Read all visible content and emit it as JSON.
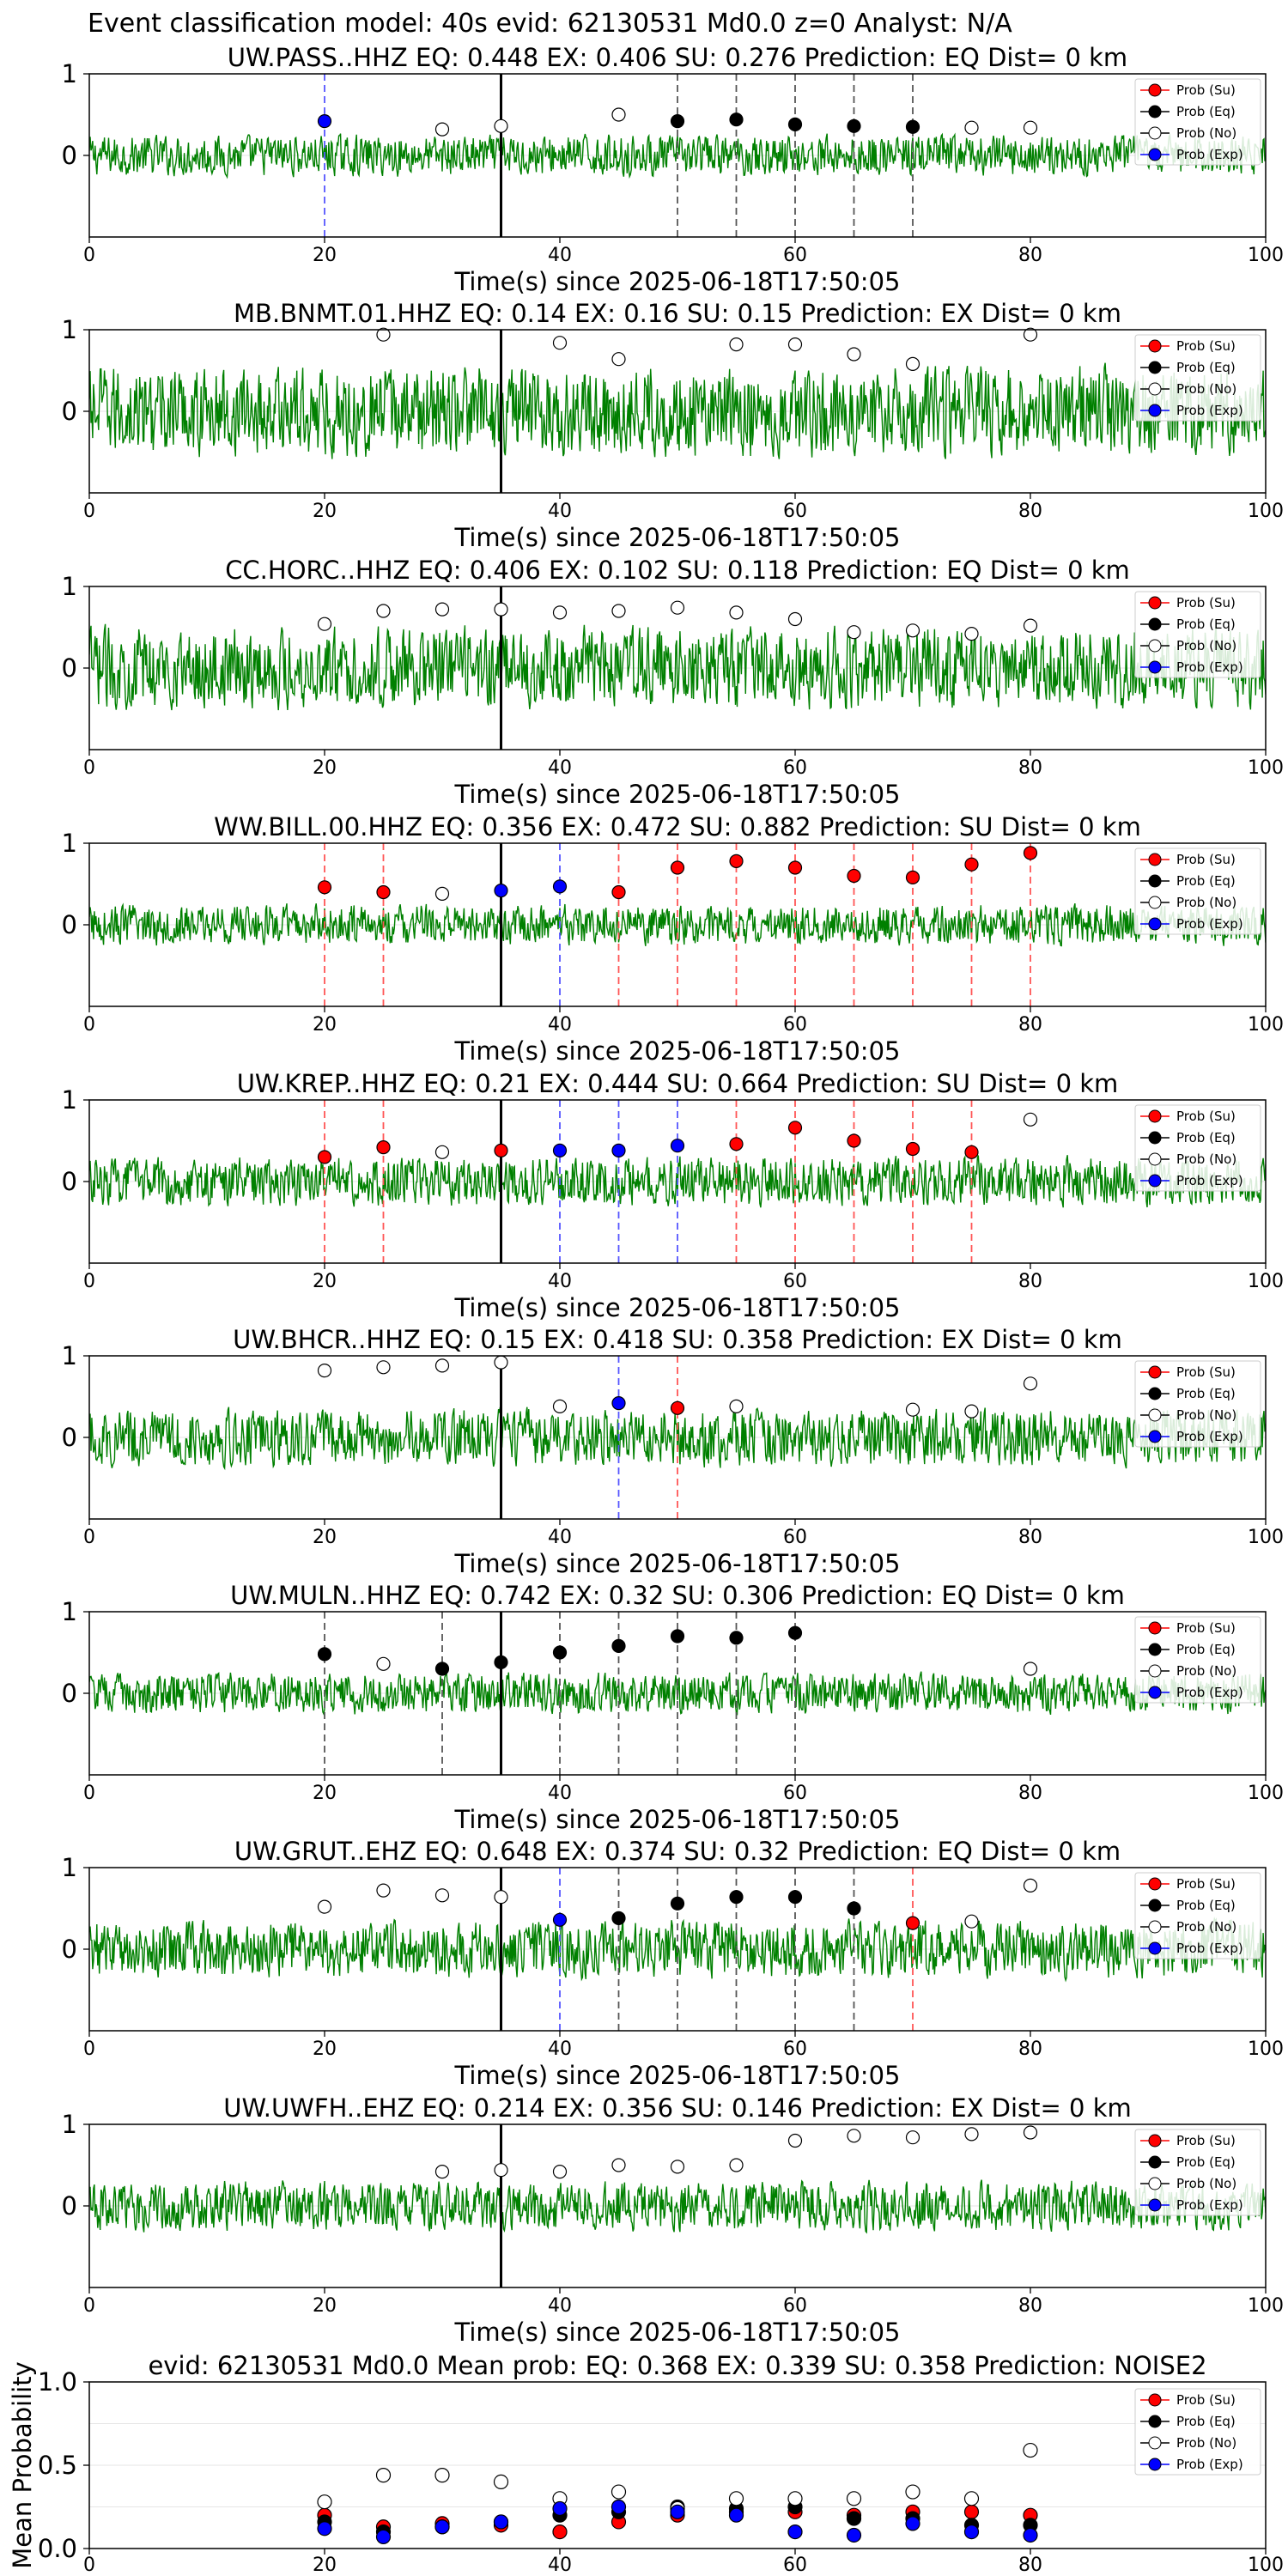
{
  "figure": {
    "suptitle": "Event classification model: 40s evid: 62130531 Md0.0 z=0 Analyst: N/A"
  },
  "legend_labels": [
    "Prob (Su)",
    "Prob (Eq)",
    "Prob (No)",
    "Prob (Exp)"
  ],
  "colors": {
    "waveform": "#008000",
    "su": "#ff0000",
    "eq": "#000000",
    "no": "#ffffff",
    "exp": "#0000ff",
    "vline_su": "#ff5555",
    "vline_eq": "#555555",
    "vline_exp": "#5555ff",
    "origin_line": "#000000"
  },
  "chart_data": [
    {
      "type": "scatter",
      "station": "UW.PASS..HHZ",
      "title": "UW.PASS..HHZ   EQ: 0.448  EX: 0.406  SU: 0.276   Prediction: EQ    Dist= 0 km",
      "xlabel": "Time(s) since 2025-06-18T17:50:05",
      "xlim": [
        0,
        100
      ],
      "ylim": [
        -1,
        1
      ],
      "xticks": [
        0,
        20,
        40,
        60,
        80,
        100
      ],
      "yticks": [
        0,
        1
      ],
      "origin_time": 35,
      "noise_amp": 0.25,
      "points": [
        {
          "x": 20,
          "y": 0.42,
          "cls": "exp"
        },
        {
          "x": 30,
          "y": 0.32,
          "cls": "no"
        },
        {
          "x": 35,
          "y": 0.36,
          "cls": "no"
        },
        {
          "x": 45,
          "y": 0.5,
          "cls": "no"
        },
        {
          "x": 50,
          "y": 0.42,
          "cls": "eq"
        },
        {
          "x": 55,
          "y": 0.44,
          "cls": "eq"
        },
        {
          "x": 60,
          "y": 0.38,
          "cls": "eq"
        },
        {
          "x": 65,
          "y": 0.36,
          "cls": "eq"
        },
        {
          "x": 70,
          "y": 0.35,
          "cls": "eq"
        },
        {
          "x": 75,
          "y": 0.34,
          "cls": "no"
        },
        {
          "x": 80,
          "y": 0.34,
          "cls": "no"
        }
      ]
    },
    {
      "type": "scatter",
      "station": "MB.BNMT.01.HHZ",
      "title": "MB.BNMT.01.HHZ   EQ: 0.14  EX: 0.16  SU: 0.15   Prediction: EX    Dist= 0 km",
      "xlabel": "Time(s) since 2025-06-18T17:50:05",
      "xlim": [
        0,
        100
      ],
      "ylim": [
        -1,
        1
      ],
      "xticks": [
        0,
        20,
        40,
        60,
        80,
        100
      ],
      "yticks": [
        0,
        1
      ],
      "origin_time": 35,
      "noise_amp": 0.55,
      "points": [
        {
          "x": 25,
          "y": 0.94,
          "cls": "no"
        },
        {
          "x": 40,
          "y": 0.84,
          "cls": "no"
        },
        {
          "x": 45,
          "y": 0.64,
          "cls": "no"
        },
        {
          "x": 55,
          "y": 0.82,
          "cls": "no"
        },
        {
          "x": 60,
          "y": 0.82,
          "cls": "no"
        },
        {
          "x": 65,
          "y": 0.7,
          "cls": "no"
        },
        {
          "x": 70,
          "y": 0.58,
          "cls": "no"
        },
        {
          "x": 80,
          "y": 0.94,
          "cls": "no"
        }
      ]
    },
    {
      "type": "scatter",
      "station": "CC.HORC..HHZ",
      "title": "CC.HORC..HHZ   EQ: 0.406  EX: 0.102  SU: 0.118   Prediction: EQ    Dist= 0 km",
      "xlabel": "Time(s) since 2025-06-18T17:50:05",
      "xlim": [
        0,
        100
      ],
      "ylim": [
        -1,
        1
      ],
      "xticks": [
        0,
        20,
        40,
        60,
        80,
        100
      ],
      "yticks": [
        0,
        1
      ],
      "origin_time": 35,
      "noise_amp": 0.5,
      "points": [
        {
          "x": 20,
          "y": 0.54,
          "cls": "no"
        },
        {
          "x": 25,
          "y": 0.7,
          "cls": "no"
        },
        {
          "x": 30,
          "y": 0.72,
          "cls": "no"
        },
        {
          "x": 35,
          "y": 0.72,
          "cls": "no"
        },
        {
          "x": 40,
          "y": 0.68,
          "cls": "no"
        },
        {
          "x": 45,
          "y": 0.7,
          "cls": "no"
        },
        {
          "x": 50,
          "y": 0.74,
          "cls": "no"
        },
        {
          "x": 55,
          "y": 0.68,
          "cls": "no"
        },
        {
          "x": 60,
          "y": 0.6,
          "cls": "no"
        },
        {
          "x": 65,
          "y": 0.44,
          "cls": "no"
        },
        {
          "x": 70,
          "y": 0.46,
          "cls": "no"
        },
        {
          "x": 75,
          "y": 0.42,
          "cls": "no"
        },
        {
          "x": 80,
          "y": 0.52,
          "cls": "no"
        }
      ]
    },
    {
      "type": "scatter",
      "station": "WW.BILL.00.HHZ",
      "title": "WW.BILL.00.HHZ   EQ: 0.356  EX: 0.472  SU: 0.882   Prediction: SU    Dist= 0 km",
      "xlabel": "Time(s) since 2025-06-18T17:50:05",
      "xlim": [
        0,
        100
      ],
      "ylim": [
        -1,
        1
      ],
      "xticks": [
        0,
        20,
        40,
        60,
        80,
        100
      ],
      "yticks": [
        0,
        1
      ],
      "origin_time": 35,
      "noise_amp": 0.25,
      "points": [
        {
          "x": 20,
          "y": 0.46,
          "cls": "su"
        },
        {
          "x": 25,
          "y": 0.4,
          "cls": "su"
        },
        {
          "x": 30,
          "y": 0.38,
          "cls": "no"
        },
        {
          "x": 35,
          "y": 0.42,
          "cls": "exp"
        },
        {
          "x": 40,
          "y": 0.47,
          "cls": "exp"
        },
        {
          "x": 45,
          "y": 0.4,
          "cls": "su"
        },
        {
          "x": 50,
          "y": 0.7,
          "cls": "su"
        },
        {
          "x": 55,
          "y": 0.78,
          "cls": "su"
        },
        {
          "x": 60,
          "y": 0.7,
          "cls": "su"
        },
        {
          "x": 65,
          "y": 0.6,
          "cls": "su"
        },
        {
          "x": 70,
          "y": 0.58,
          "cls": "su"
        },
        {
          "x": 75,
          "y": 0.74,
          "cls": "su"
        },
        {
          "x": 80,
          "y": 0.88,
          "cls": "su"
        }
      ]
    },
    {
      "type": "scatter",
      "station": "UW.KREP..HHZ",
      "title": "UW.KREP..HHZ   EQ: 0.21  EX: 0.444  SU: 0.664   Prediction: SU    Dist= 0 km",
      "xlabel": "Time(s) since 2025-06-18T17:50:05",
      "xlim": [
        0,
        100
      ],
      "ylim": [
        -1,
        1
      ],
      "xticks": [
        0,
        20,
        40,
        60,
        80,
        100
      ],
      "yticks": [
        0,
        1
      ],
      "origin_time": 35,
      "noise_amp": 0.3,
      "points": [
        {
          "x": 20,
          "y": 0.3,
          "cls": "su"
        },
        {
          "x": 25,
          "y": 0.42,
          "cls": "su"
        },
        {
          "x": 30,
          "y": 0.36,
          "cls": "no"
        },
        {
          "x": 35,
          "y": 0.38,
          "cls": "su"
        },
        {
          "x": 40,
          "y": 0.38,
          "cls": "exp"
        },
        {
          "x": 45,
          "y": 0.38,
          "cls": "exp"
        },
        {
          "x": 50,
          "y": 0.44,
          "cls": "exp"
        },
        {
          "x": 55,
          "y": 0.46,
          "cls": "su"
        },
        {
          "x": 60,
          "y": 0.66,
          "cls": "su"
        },
        {
          "x": 65,
          "y": 0.5,
          "cls": "su"
        },
        {
          "x": 70,
          "y": 0.4,
          "cls": "su"
        },
        {
          "x": 75,
          "y": 0.36,
          "cls": "su"
        },
        {
          "x": 80,
          "y": 0.76,
          "cls": "no"
        }
      ]
    },
    {
      "type": "scatter",
      "station": "UW.BHCR..HHZ",
      "title": "UW.BHCR..HHZ   EQ: 0.15  EX: 0.418  SU: 0.358   Prediction: EX    Dist= 0 km",
      "xlabel": "Time(s) since 2025-06-18T17:50:05",
      "xlim": [
        0,
        100
      ],
      "ylim": [
        -1,
        1
      ],
      "xticks": [
        0,
        20,
        40,
        60,
        80,
        100
      ],
      "yticks": [
        0,
        1
      ],
      "origin_time": 35,
      "noise_amp": 0.35,
      "points": [
        {
          "x": 20,
          "y": 0.82,
          "cls": "no"
        },
        {
          "x": 25,
          "y": 0.86,
          "cls": "no"
        },
        {
          "x": 30,
          "y": 0.88,
          "cls": "no"
        },
        {
          "x": 35,
          "y": 0.92,
          "cls": "no"
        },
        {
          "x": 40,
          "y": 0.38,
          "cls": "no"
        },
        {
          "x": 45,
          "y": 0.42,
          "cls": "exp"
        },
        {
          "x": 50,
          "y": 0.36,
          "cls": "su"
        },
        {
          "x": 55,
          "y": 0.38,
          "cls": "no"
        },
        {
          "x": 70,
          "y": 0.34,
          "cls": "no"
        },
        {
          "x": 75,
          "y": 0.32,
          "cls": "no"
        },
        {
          "x": 80,
          "y": 0.66,
          "cls": "no"
        }
      ]
    },
    {
      "type": "scatter",
      "station": "UW.MULN..HHZ",
      "title": "UW.MULN..HHZ   EQ: 0.742  EX: 0.32  SU: 0.306   Prediction: EQ    Dist= 0 km",
      "xlabel": "Time(s) since 2025-06-18T17:50:05",
      "xlim": [
        0,
        100
      ],
      "ylim": [
        -1,
        1
      ],
      "xticks": [
        0,
        20,
        40,
        60,
        80,
        100
      ],
      "yticks": [
        0,
        1
      ],
      "origin_time": 35,
      "noise_amp": 0.25,
      "points": [
        {
          "x": 20,
          "y": 0.48,
          "cls": "eq"
        },
        {
          "x": 25,
          "y": 0.36,
          "cls": "no"
        },
        {
          "x": 30,
          "y": 0.3,
          "cls": "eq"
        },
        {
          "x": 35,
          "y": 0.38,
          "cls": "eq"
        },
        {
          "x": 40,
          "y": 0.5,
          "cls": "eq"
        },
        {
          "x": 45,
          "y": 0.58,
          "cls": "eq"
        },
        {
          "x": 50,
          "y": 0.7,
          "cls": "eq"
        },
        {
          "x": 55,
          "y": 0.68,
          "cls": "eq"
        },
        {
          "x": 60,
          "y": 0.74,
          "cls": "eq"
        },
        {
          "x": 80,
          "y": 0.3,
          "cls": "no"
        }
      ]
    },
    {
      "type": "scatter",
      "station": "UW.GRUT..EHZ",
      "title": "UW.GRUT..EHZ   EQ: 0.648  EX: 0.374  SU: 0.32   Prediction: EQ    Dist= 0 km",
      "xlabel": "Time(s) since 2025-06-18T17:50:05",
      "xlim": [
        0,
        100
      ],
      "ylim": [
        -1,
        1
      ],
      "xticks": [
        0,
        20,
        40,
        60,
        80,
        100
      ],
      "yticks": [
        0,
        1
      ],
      "origin_time": 35,
      "noise_amp": 0.35,
      "points": [
        {
          "x": 20,
          "y": 0.52,
          "cls": "no"
        },
        {
          "x": 25,
          "y": 0.72,
          "cls": "no"
        },
        {
          "x": 30,
          "y": 0.66,
          "cls": "no"
        },
        {
          "x": 35,
          "y": 0.64,
          "cls": "no"
        },
        {
          "x": 40,
          "y": 0.36,
          "cls": "exp"
        },
        {
          "x": 45,
          "y": 0.38,
          "cls": "eq"
        },
        {
          "x": 50,
          "y": 0.56,
          "cls": "eq"
        },
        {
          "x": 55,
          "y": 0.64,
          "cls": "eq"
        },
        {
          "x": 60,
          "y": 0.64,
          "cls": "eq"
        },
        {
          "x": 65,
          "y": 0.5,
          "cls": "eq"
        },
        {
          "x": 70,
          "y": 0.32,
          "cls": "su"
        },
        {
          "x": 75,
          "y": 0.34,
          "cls": "no"
        },
        {
          "x": 80,
          "y": 0.78,
          "cls": "no"
        }
      ]
    },
    {
      "type": "scatter",
      "station": "UW.UWFH..EHZ",
      "title": "UW.UWFH..EHZ   EQ: 0.214  EX: 0.356  SU: 0.146   Prediction: EX    Dist= 0 km",
      "xlabel": "Time(s) since 2025-06-18T17:50:05",
      "xlim": [
        0,
        100
      ],
      "ylim": [
        -1,
        1
      ],
      "xticks": [
        0,
        20,
        40,
        60,
        80,
        100
      ],
      "yticks": [
        0,
        1
      ],
      "origin_time": 35,
      "noise_amp": 0.3,
      "points": [
        {
          "x": 30,
          "y": 0.42,
          "cls": "no"
        },
        {
          "x": 35,
          "y": 0.44,
          "cls": "no"
        },
        {
          "x": 40,
          "y": 0.42,
          "cls": "no"
        },
        {
          "x": 45,
          "y": 0.5,
          "cls": "no"
        },
        {
          "x": 50,
          "y": 0.48,
          "cls": "no"
        },
        {
          "x": 55,
          "y": 0.5,
          "cls": "no"
        },
        {
          "x": 60,
          "y": 0.8,
          "cls": "no"
        },
        {
          "x": 65,
          "y": 0.86,
          "cls": "no"
        },
        {
          "x": 70,
          "y": 0.84,
          "cls": "no"
        },
        {
          "x": 75,
          "y": 0.88,
          "cls": "no"
        },
        {
          "x": 80,
          "y": 0.9,
          "cls": "no"
        }
      ]
    },
    {
      "type": "scatter",
      "title": "evid: 62130531  Md0.0   Mean prob:    EQ: 0.368  EX: 0.339  SU: 0.358   Prediction: NOISE2",
      "ylabel": "Mean Probability",
      "xlim": [
        0,
        100
      ],
      "ylim": [
        0,
        1
      ],
      "xticks": [
        0,
        20,
        40,
        60,
        80,
        100
      ],
      "yticks": [
        0.0,
        0.5,
        1.0
      ],
      "ytick_labels": [
        "0.0",
        "0.5",
        "1.0"
      ],
      "series": [
        {
          "name": "Prob (Su)",
          "cls": "su",
          "x": [
            20,
            25,
            30,
            35,
            40,
            45,
            50,
            55,
            60,
            65,
            70,
            75,
            80
          ],
          "values": [
            0.2,
            0.13,
            0.15,
            0.14,
            0.1,
            0.16,
            0.2,
            0.22,
            0.22,
            0.2,
            0.22,
            0.22,
            0.2
          ]
        },
        {
          "name": "Prob (Eq)",
          "cls": "eq",
          "x": [
            20,
            25,
            30,
            35,
            40,
            45,
            50,
            55,
            60,
            65,
            70,
            75,
            80
          ],
          "values": [
            0.16,
            0.1,
            0.13,
            0.16,
            0.2,
            0.22,
            0.25,
            0.24,
            0.25,
            0.18,
            0.18,
            0.14,
            0.14
          ]
        },
        {
          "name": "Prob (No)",
          "cls": "no",
          "x": [
            20,
            25,
            30,
            35,
            40,
            45,
            50,
            55,
            60,
            65,
            70,
            75,
            80
          ],
          "values": [
            0.28,
            0.44,
            0.44,
            0.4,
            0.3,
            0.34,
            0.24,
            0.3,
            0.3,
            0.3,
            0.34,
            0.3,
            0.59
          ]
        },
        {
          "name": "Prob (Exp)",
          "cls": "exp",
          "x": [
            20,
            25,
            30,
            35,
            40,
            45,
            50,
            55,
            60,
            65,
            70,
            75,
            80
          ],
          "values": [
            0.12,
            0.07,
            0.13,
            0.16,
            0.24,
            0.25,
            0.22,
            0.2,
            0.1,
            0.08,
            0.15,
            0.1,
            0.08
          ]
        }
      ]
    }
  ]
}
